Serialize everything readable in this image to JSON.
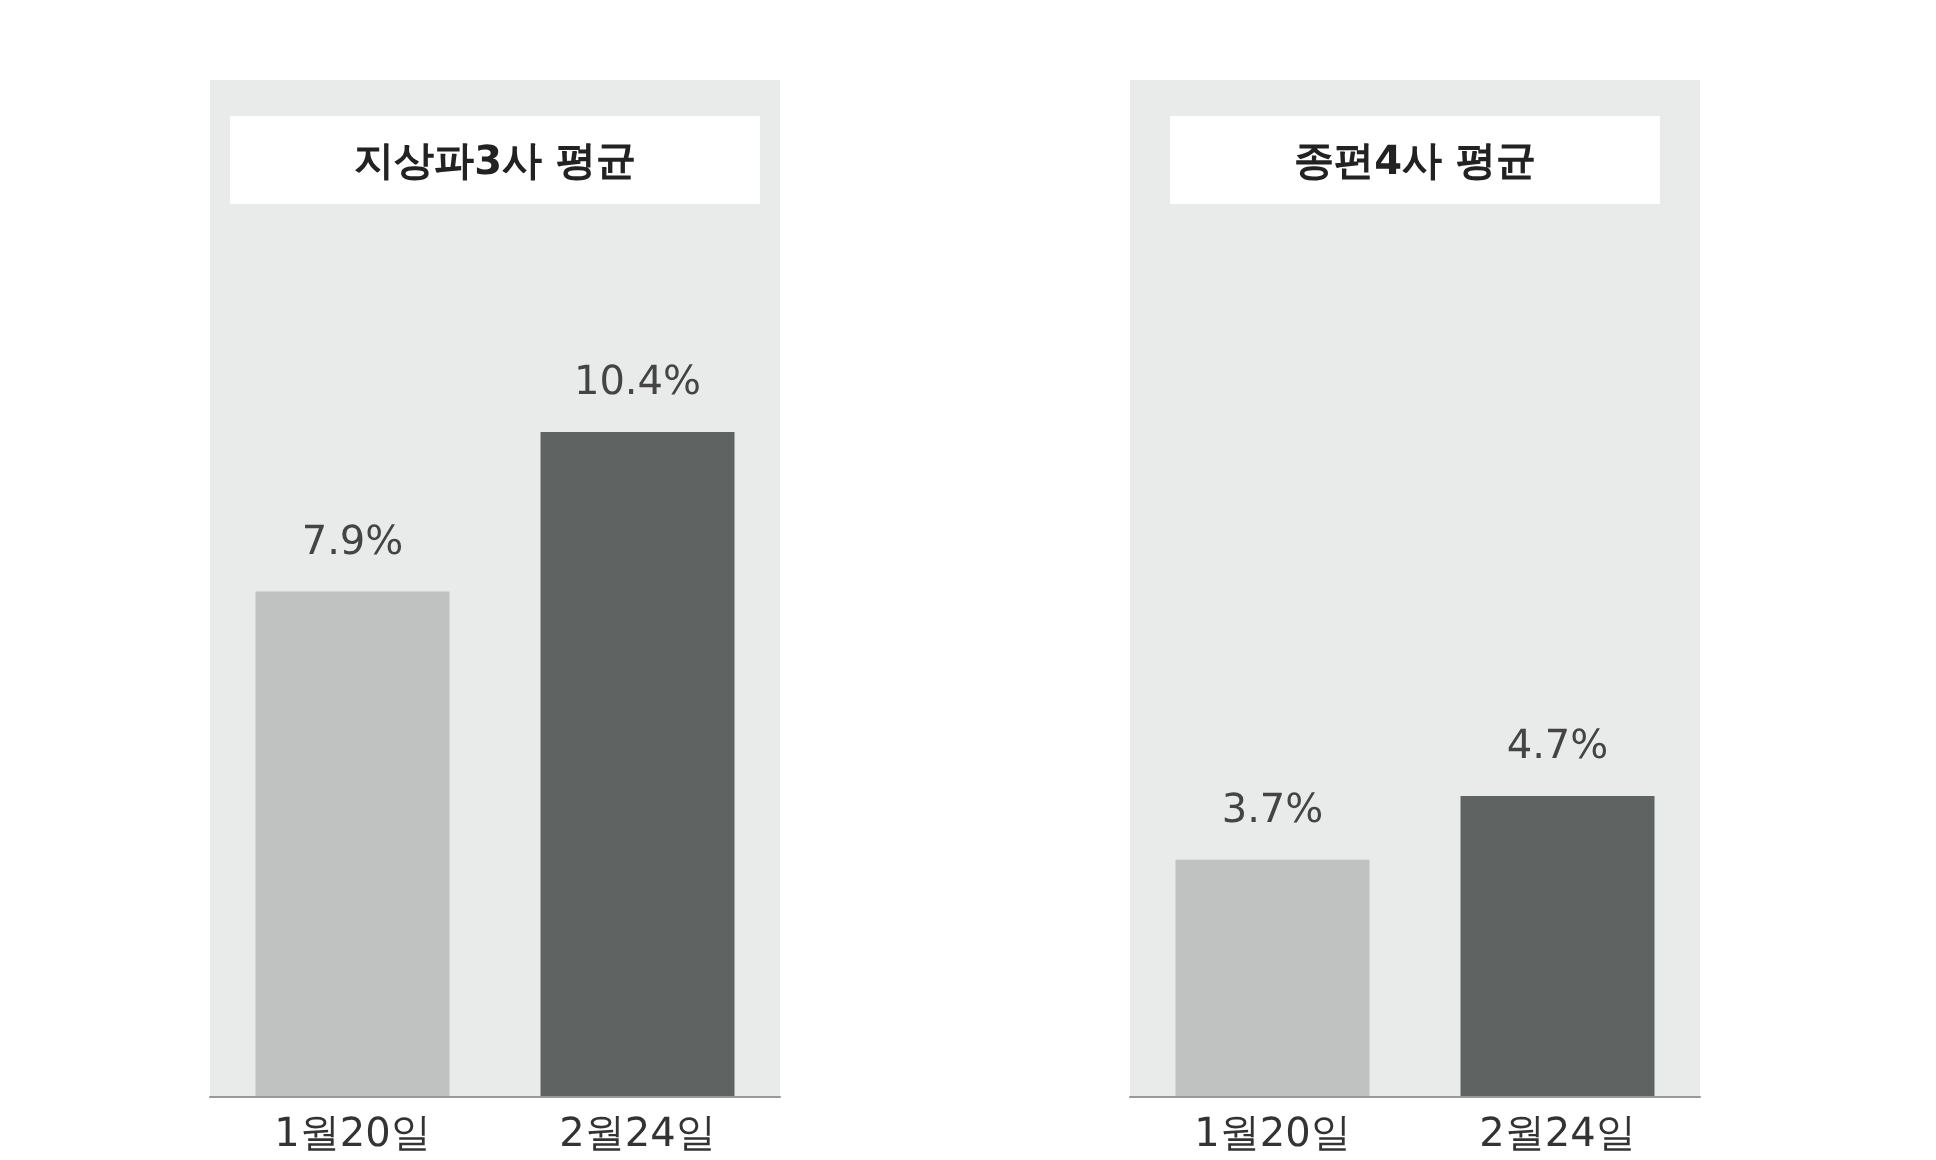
{
  "chart_data": [
    {
      "type": "bar",
      "title": "지상파3사 평균",
      "categories": [
        "1월20일",
        "2월24일"
      ],
      "values": [
        7.9,
        10.4
      ],
      "colors": [
        "#bfc2c1",
        "#5f6463"
      ],
      "value_labels": [
        "7.9%",
        "10.4%"
      ]
    },
    {
      "type": "bar",
      "title": "종편4사 평균",
      "categories": [
        "1월20일",
        "2월24일"
      ],
      "values": [
        3.7,
        4.7
      ],
      "colors": [
        "#bfc2c1",
        "#5f6463"
      ],
      "value_labels": [
        "3.7%",
        "4.7%"
      ]
    }
  ]
}
